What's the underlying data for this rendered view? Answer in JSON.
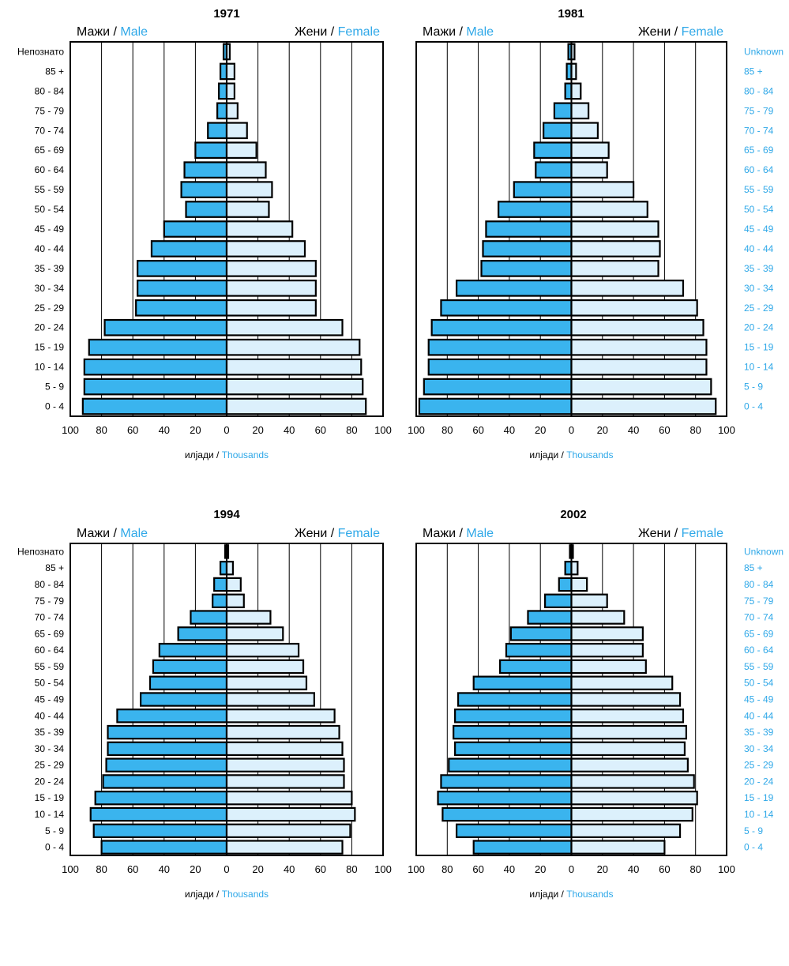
{
  "labels": {
    "male_mk": "Мажи",
    "male_en": "Male",
    "female_mk": "Жени",
    "female_en": "Female",
    "sep": " / ",
    "unit_mk": "илјади",
    "unit_en": "Thousands"
  },
  "colors": {
    "male": "#3ab4ee",
    "female": "#dcf0fc",
    "english_text": "#2fa8e8",
    "grid": "#000000"
  },
  "chart_data": [
    {
      "type": "bar",
      "orientation": "horizontal",
      "title": "1971",
      "categories": [
        "Непознато",
        "85 +",
        "80 - 84",
        "75 - 79",
        "70 - 74",
        "65 - 69",
        "60 - 64",
        "55 - 59",
        "50 - 54",
        "45 - 49",
        "40 - 44",
        "35 - 39",
        "30 - 34",
        "25 - 29",
        "20 - 24",
        "15 - 19",
        "10 - 14",
        "5 - 9",
        "0 - 4"
      ],
      "categories_en": [
        "",
        "",
        "",
        "",
        "",
        "",
        "",
        "",
        "",
        "",
        "",
        "",
        "",
        "",
        "",
        "",
        "",
        "",
        ""
      ],
      "series": [
        {
          "name": "Мажи / Male",
          "values": [
            2,
            4,
            5,
            6,
            12,
            20,
            27,
            29,
            26,
            40,
            48,
            57,
            57,
            58,
            78,
            88,
            91,
            91,
            92
          ]
        },
        {
          "name": "Жени / Female",
          "values": [
            2,
            5,
            5,
            7,
            13,
            19,
            25,
            29,
            27,
            42,
            50,
            57,
            57,
            57,
            74,
            85,
            86,
            87,
            89
          ]
        }
      ],
      "xlim": [
        -100,
        100
      ],
      "xticks": [
        100,
        80,
        60,
        40,
        20,
        0,
        20,
        40,
        60,
        80,
        100
      ],
      "xlabel": "илјади / Thousands"
    },
    {
      "type": "bar",
      "orientation": "horizontal",
      "title": "1981",
      "categories": [
        "",
        "",
        "",
        "",
        "",
        "",
        "",
        "",
        "",
        "",
        "",
        "",
        "",
        "",
        "",
        "",
        "",
        "",
        ""
      ],
      "categories_en": [
        "Unknown",
        "85 +",
        "80 - 84",
        "75 - 79",
        "70 - 74",
        "65 - 69",
        "60 - 64",
        "55 - 59",
        "50 - 54",
        "45 - 49",
        "40 - 44",
        "35 - 39",
        "30 - 34",
        "25 - 29",
        "20 - 24",
        "15 - 19",
        "10 - 14",
        "5 - 9",
        "0 - 4"
      ],
      "series": [
        {
          "name": "Мажи / Male",
          "values": [
            2,
            3,
            4,
            11,
            18,
            24,
            23,
            37,
            47,
            55,
            57,
            58,
            74,
            84,
            90,
            92,
            92,
            95,
            98
          ]
        },
        {
          "name": "Жени / Female",
          "values": [
            2,
            3,
            6,
            11,
            17,
            24,
            23,
            40,
            49,
            56,
            57,
            56,
            72,
            81,
            85,
            87,
            87,
            90,
            93
          ]
        }
      ],
      "xlim": [
        -100,
        100
      ],
      "xticks": [
        100,
        80,
        60,
        40,
        20,
        0,
        20,
        40,
        60,
        80,
        100
      ],
      "xlabel": "илјади / Thousands"
    },
    {
      "type": "bar",
      "orientation": "horizontal",
      "title": "1994",
      "categories": [
        "Непознато",
        "85 +",
        "80 - 84",
        "75 - 79",
        "70 - 74",
        "65 - 69",
        "60 - 64",
        "55 - 59",
        "50 - 54",
        "45 - 49",
        "40 - 44",
        "35 - 39",
        "30 - 34",
        "25 - 29",
        "20 - 24",
        "15 - 19",
        "10 - 14",
        "5 - 9",
        "0 - 4"
      ],
      "categories_en": [
        "",
        "",
        "",
        "",
        "",
        "",
        "",
        "",
        "",
        "",
        "",
        "",
        "",
        "",
        "",
        "",
        "",
        "",
        ""
      ],
      "series": [
        {
          "name": "Мажи / Male",
          "values": [
            1,
            4,
            8,
            9,
            23,
            31,
            43,
            47,
            49,
            55,
            70,
            76,
            76,
            77,
            79,
            84,
            87,
            85,
            80
          ]
        },
        {
          "name": "Жени / Female",
          "values": [
            1,
            4,
            9,
            11,
            28,
            36,
            46,
            49,
            51,
            56,
            69,
            72,
            74,
            75,
            75,
            80,
            82,
            79,
            74
          ]
        }
      ],
      "xlim": [
        -100,
        100
      ],
      "xticks": [
        100,
        80,
        60,
        40,
        20,
        0,
        20,
        40,
        60,
        80,
        100
      ],
      "xlabel": "илјади / Thousands"
    },
    {
      "type": "bar",
      "orientation": "horizontal",
      "title": "2002",
      "categories": [
        "",
        "",
        "",
        "",
        "",
        "",
        "",
        "",
        "",
        "",
        "",
        "",
        "",
        "",
        "",
        "",
        "",
        "",
        ""
      ],
      "categories_en": [
        "Unknown",
        "85 +",
        "80 - 84",
        "75 - 79",
        "70 - 74",
        "65 - 69",
        "60 - 64",
        "55 - 59",
        "50 - 54",
        "45 - 49",
        "40 - 44",
        "35 - 39",
        "30 - 34",
        "25 - 29",
        "20 - 24",
        "15 - 19",
        "10 - 14",
        "5 - 9",
        "0 - 4"
      ],
      "series": [
        {
          "name": "Мажи / Male",
          "values": [
            1,
            4,
            8,
            17,
            28,
            39,
            42,
            46,
            63,
            73,
            75,
            76,
            75,
            79,
            84,
            86,
            83,
            74,
            63
          ]
        },
        {
          "name": "Жени / Female",
          "values": [
            1,
            4,
            10,
            23,
            34,
            46,
            46,
            48,
            65,
            70,
            72,
            74,
            73,
            75,
            79,
            81,
            78,
            70,
            60
          ]
        }
      ],
      "xlim": [
        -100,
        100
      ],
      "xticks": [
        100,
        80,
        60,
        40,
        20,
        0,
        20,
        40,
        60,
        80,
        100
      ],
      "xlabel": "илјади / Thousands"
    }
  ]
}
